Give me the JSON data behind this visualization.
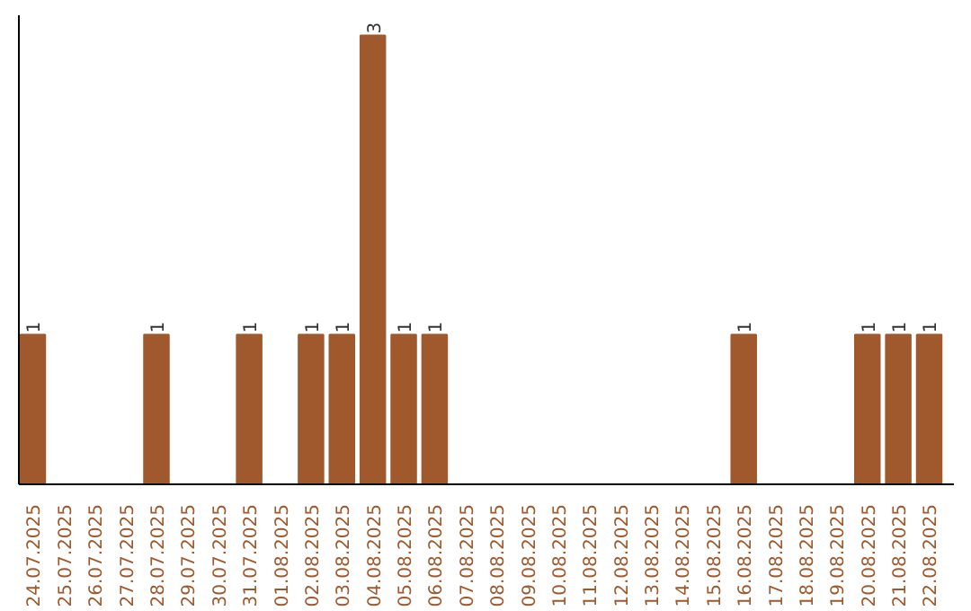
{
  "chart_data": {
    "type": "bar",
    "categories": [
      "24.07.2025",
      "25.07.2025",
      "26.07.2025",
      "27.07.2025",
      "28.07.2025",
      "29.07.2025",
      "30.07.2025",
      "31.07.2025",
      "01.08.2025",
      "02.08.2025",
      "03.08.2025",
      "04.08.2025",
      "05.08.2025",
      "06.08.2025",
      "07.08.2025",
      "08.08.2025",
      "09.08.2025",
      "10.08.2025",
      "11.08.2025",
      "12.08.2025",
      "13.08.2025",
      "14.08.2025",
      "15.08.2025",
      "16.08.2025",
      "17.08.2025",
      "18.08.2025",
      "19.08.2025",
      "20.08.2025",
      "21.08.2025",
      "22.08.2025"
    ],
    "values": [
      1,
      0,
      0,
      0,
      1,
      0,
      0,
      1,
      0,
      1,
      1,
      3,
      1,
      1,
      0,
      0,
      0,
      0,
      0,
      0,
      0,
      0,
      0,
      1,
      0,
      0,
      0,
      1,
      1,
      1
    ],
    "value_labels": [
      "1",
      null,
      null,
      null,
      "1",
      null,
      null,
      "1",
      null,
      "1",
      "1",
      "3",
      "1",
      "1",
      null,
      null,
      null,
      null,
      null,
      null,
      null,
      null,
      null,
      "1",
      null,
      null,
      null,
      "1",
      "1",
      "1"
    ],
    "color": "#a0582d",
    "grid": false,
    "tick_labels": "x"
  }
}
